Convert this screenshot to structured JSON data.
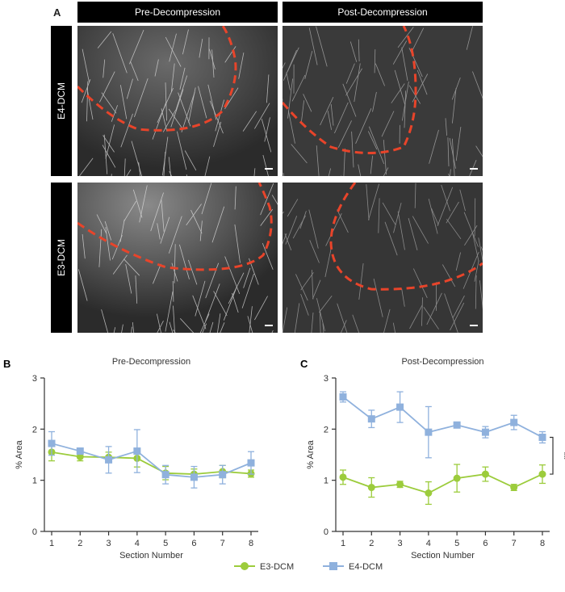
{
  "panel_a": {
    "letter": "A",
    "columns": [
      "Pre-Decompression",
      "Post-Decompression"
    ],
    "rows": [
      "E4-DCM",
      "E3-DCM"
    ]
  },
  "colors": {
    "E3-DCM": "#9ccc3c",
    "E4-DCM": "#8fb1dd",
    "boundary": "#e8442a"
  },
  "legend": {
    "items": [
      "E3-DCM",
      "E4-DCM"
    ],
    "placement": "bottom-center"
  },
  "chart_data": [
    {
      "letter": "B",
      "type": "line",
      "title": "Pre-Decompression",
      "xlabel": "Section Number",
      "ylabel": "% Area",
      "x": [
        1,
        2,
        3,
        4,
        5,
        6,
        7,
        8
      ],
      "ylim": [
        0,
        3
      ],
      "yticks": [
        0,
        1,
        2,
        3
      ],
      "grid": false,
      "series": [
        {
          "name": "E3-DCM",
          "marker": "circle",
          "values": [
            1.55,
            1.46,
            1.45,
            1.43,
            1.14,
            1.12,
            1.17,
            1.13
          ],
          "errors": [
            0.17,
            0.08,
            0.1,
            0.17,
            0.13,
            0.1,
            0.12,
            0.07
          ]
        },
        {
          "name": "E4-DCM",
          "marker": "square",
          "values": [
            1.72,
            1.57,
            1.4,
            1.57,
            1.11,
            1.06,
            1.11,
            1.34
          ],
          "errors": [
            0.23,
            0.06,
            0.26,
            0.42,
            0.18,
            0.21,
            0.18,
            0.22
          ]
        }
      ]
    },
    {
      "letter": "C",
      "type": "line",
      "title": "Post-Decompression",
      "xlabel": "Section Number",
      "ylabel": "% Area",
      "x": [
        1,
        2,
        3,
        4,
        5,
        6,
        7,
        8
      ],
      "ylim": [
        0,
        3
      ],
      "yticks": [
        0,
        1,
        2,
        3
      ],
      "grid": false,
      "significance": "**",
      "series": [
        {
          "name": "E3-DCM",
          "marker": "circle",
          "values": [
            1.06,
            0.86,
            0.92,
            0.75,
            1.04,
            1.12,
            0.86,
            1.12
          ],
          "errors": [
            0.14,
            0.19,
            0.06,
            0.22,
            0.27,
            0.14,
            0.06,
            0.18
          ]
        },
        {
          "name": "E4-DCM",
          "marker": "square",
          "values": [
            2.63,
            2.2,
            2.43,
            1.94,
            2.08,
            1.94,
            2.13,
            1.84
          ],
          "errors": [
            0.1,
            0.17,
            0.3,
            0.5,
            0.04,
            0.11,
            0.14,
            0.11
          ]
        }
      ]
    }
  ]
}
